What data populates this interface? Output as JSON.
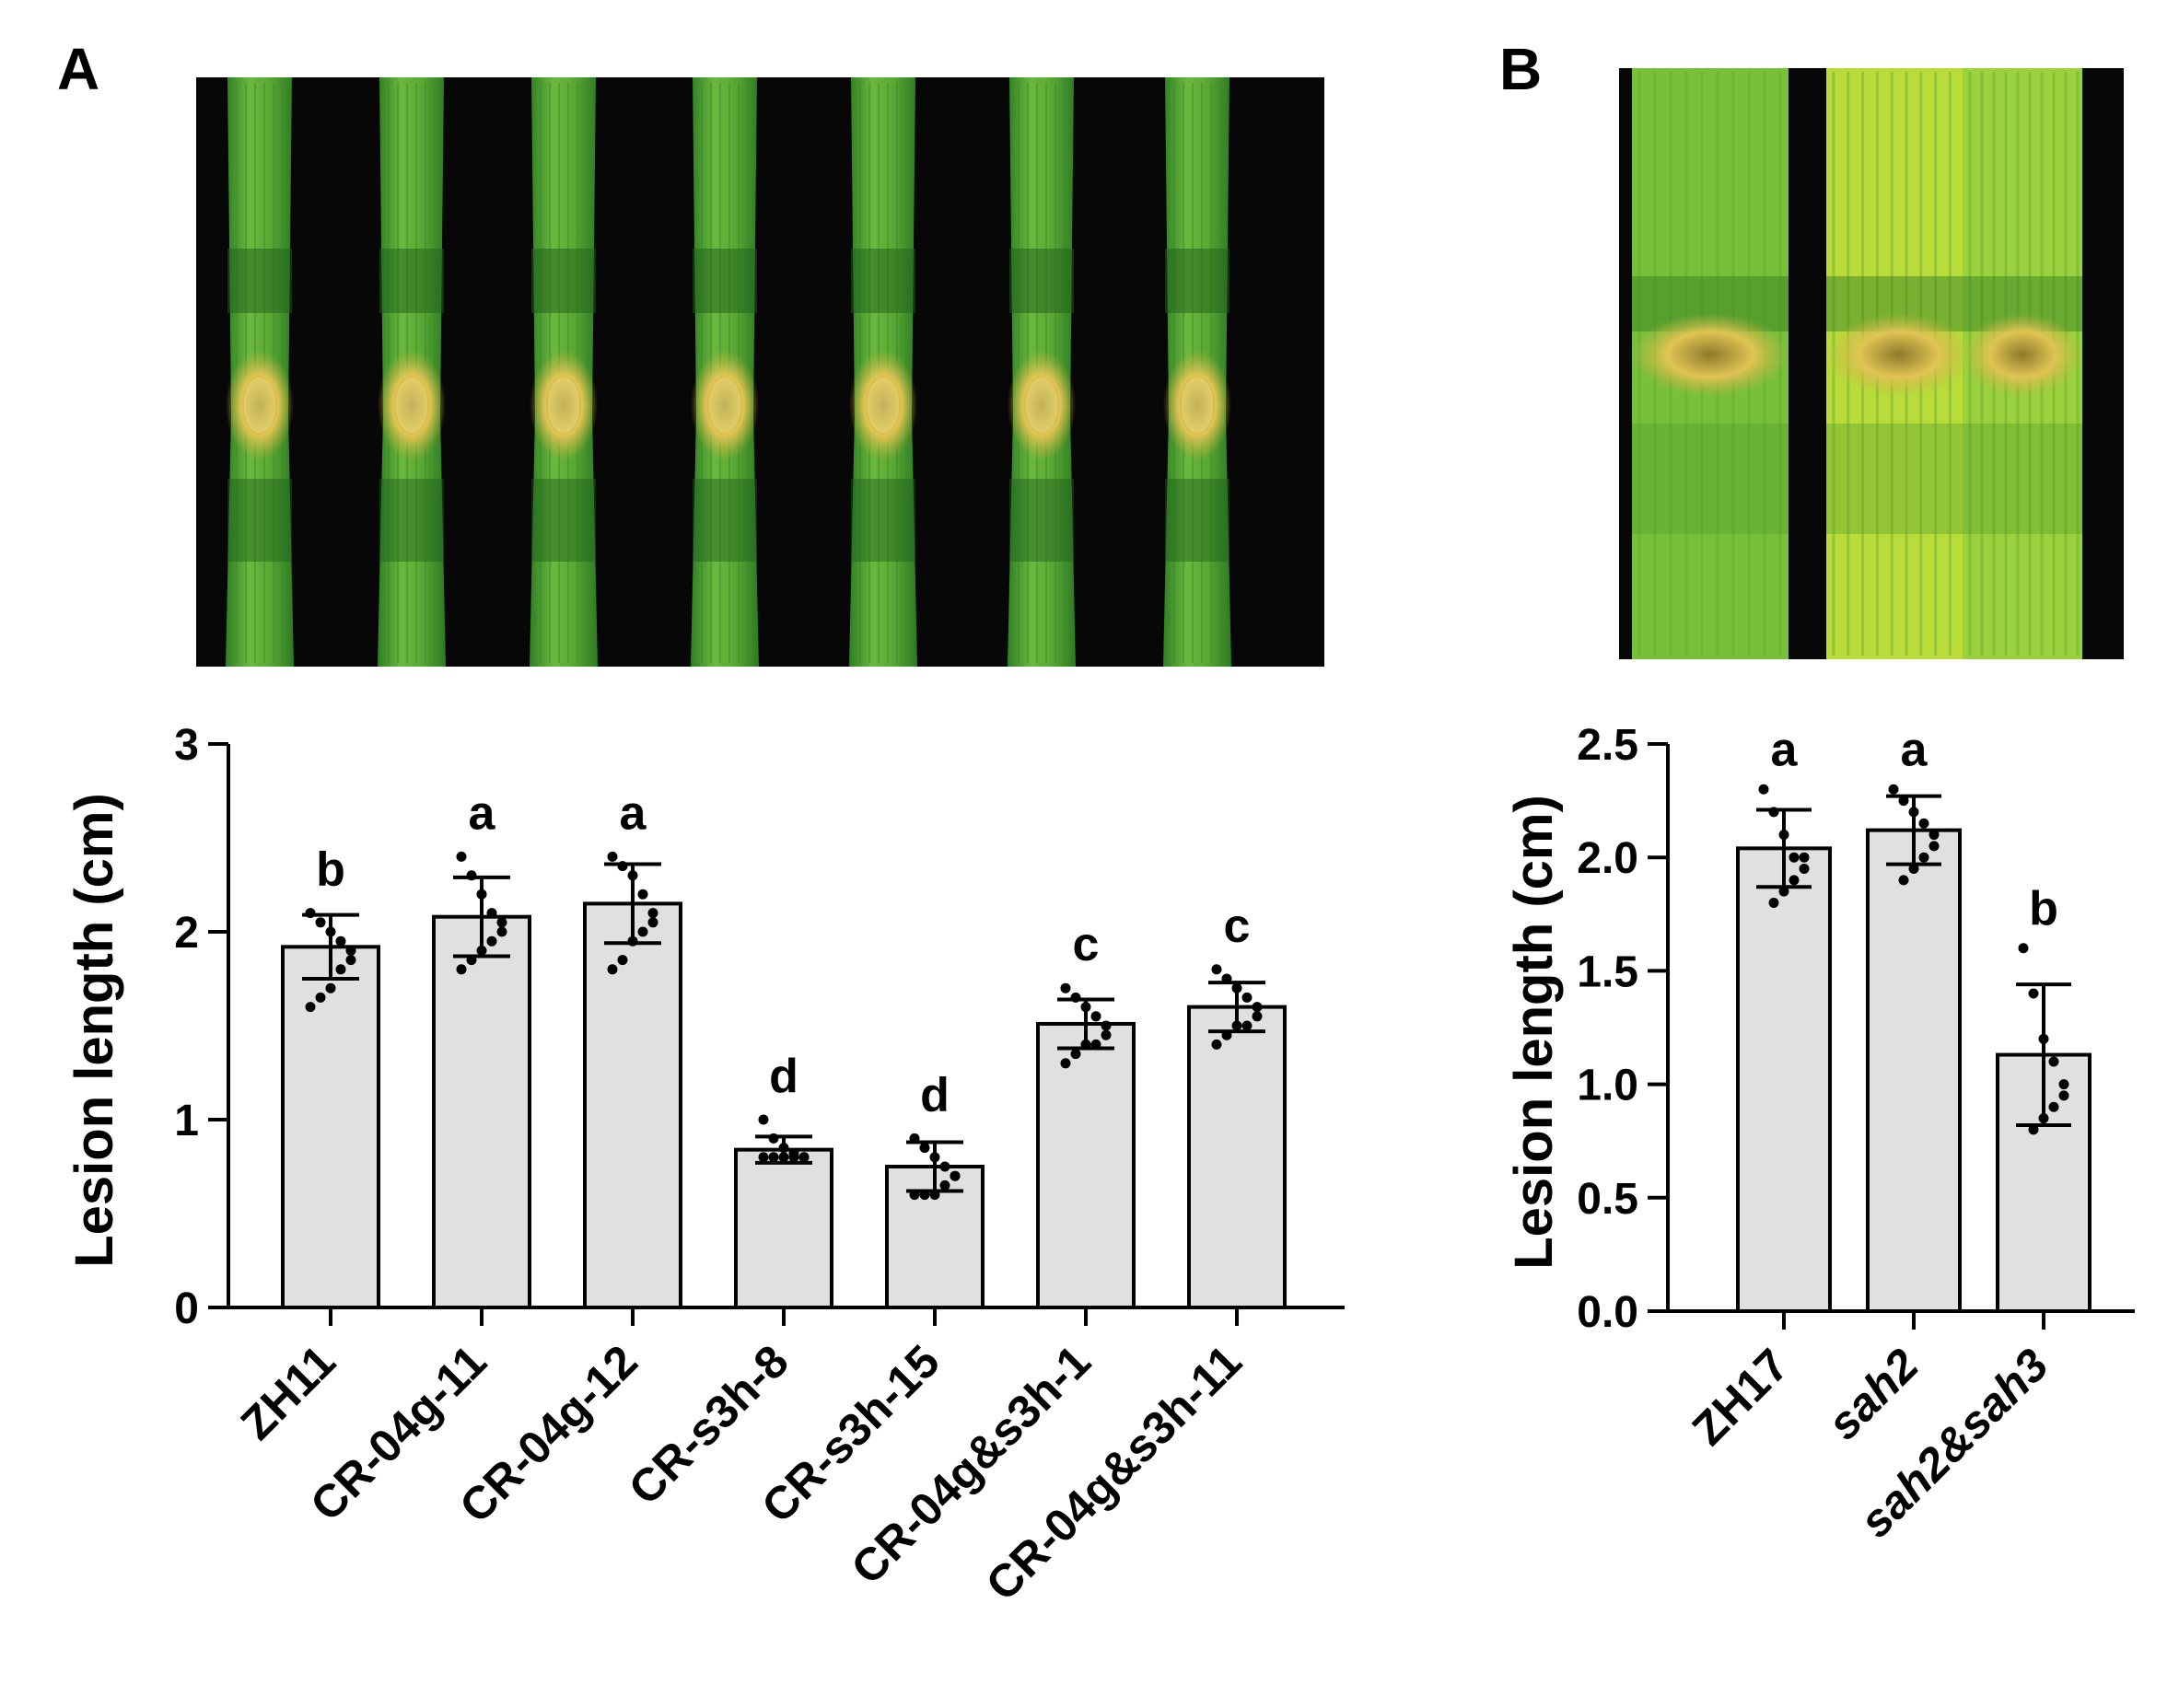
{
  "figure": {
    "panel_a_label": "A",
    "panel_b_label": "B"
  },
  "colors": {
    "bar_fill": "#e0e0e0",
    "stroke": "#000000",
    "photo_background": "#070707",
    "leaf_green": "#58a93a",
    "leaf_light": "#b9dc3b",
    "lesion": "#d2b648"
  },
  "photo_a": {
    "description_icon": "leaf-lesion-photo",
    "leaf_count": 7
  },
  "photo_b": {
    "description_icon": "leaf-lesion-photo",
    "leaf_count": 3
  },
  "chart_data": [
    {
      "type": "bar",
      "panel": "A",
      "ylabel": "Lesion length (cm)",
      "xlabel": "",
      "ylim": [
        0,
        3
      ],
      "yticks": [
        0,
        1,
        2,
        3
      ],
      "ytick_labels": [
        "0",
        "1",
        "2",
        "3"
      ],
      "categories": [
        "ZH11",
        "CR-04g-11",
        "CR-04g-12",
        "CR-s3h-8",
        "CR-s3h-15",
        "CR-04g&s3h-1",
        "CR-04g&s3h-11"
      ],
      "values": [
        1.92,
        2.08,
        2.15,
        0.84,
        0.75,
        1.51,
        1.6
      ],
      "error": [
        0.17,
        0.21,
        0.21,
        0.07,
        0.13,
        0.13,
        0.13
      ],
      "significance": [
        "b",
        "a",
        "a",
        "d",
        "d",
        "c",
        "c"
      ],
      "points": [
        [
          2.1,
          2.05,
          2.0,
          1.95,
          1.9,
          1.85,
          1.8,
          1.7,
          1.65,
          1.6
        ],
        [
          2.4,
          2.3,
          2.2,
          2.1,
          2.05,
          2.0,
          1.95,
          1.9,
          1.85,
          1.8
        ],
        [
          2.4,
          2.35,
          2.3,
          2.2,
          2.1,
          2.05,
          2.0,
          1.95,
          1.85,
          1.8
        ],
        [
          1.0,
          0.9,
          0.85,
          0.82,
          0.8,
          0.8,
          0.8,
          0.8,
          0.8,
          0.8
        ],
        [
          0.9,
          0.85,
          0.8,
          0.75,
          0.7,
          0.7,
          0.65,
          0.6,
          0.6,
          0.6
        ],
        [
          1.7,
          1.65,
          1.6,
          1.55,
          1.5,
          1.45,
          1.4,
          1.4,
          1.35,
          1.3
        ],
        [
          1.8,
          1.75,
          1.7,
          1.65,
          1.6,
          1.55,
          1.5,
          1.5,
          1.45,
          1.4
        ]
      ]
    },
    {
      "type": "bar",
      "panel": "B",
      "ylabel": "Lesion length (cm)",
      "xlabel": "",
      "ylim": [
        0,
        2.5
      ],
      "yticks": [
        0,
        0.5,
        1.0,
        1.5,
        2.0,
        2.5
      ],
      "ytick_labels": [
        "0.0",
        "0.5",
        "1.0",
        "1.5",
        "2.0",
        "2.5"
      ],
      "categories": [
        "ZH17",
        "sah2",
        "sah2&sah3"
      ],
      "category_italic": [
        false,
        true,
        true
      ],
      "values": [
        2.04,
        2.12,
        1.13
      ],
      "error": [
        0.17,
        0.15,
        0.31
      ],
      "significance": [
        "a",
        "a",
        "b"
      ],
      "points": [
        [
          2.3,
          2.2,
          2.1,
          2.0,
          2.0,
          1.95,
          1.9,
          1.85,
          1.8
        ],
        [
          2.3,
          2.25,
          2.2,
          2.15,
          2.1,
          2.05,
          2.0,
          1.95,
          1.9
        ],
        [
          1.6,
          1.4,
          1.2,
          1.1,
          1.0,
          0.95,
          0.9,
          0.85,
          0.8
        ]
      ]
    }
  ]
}
